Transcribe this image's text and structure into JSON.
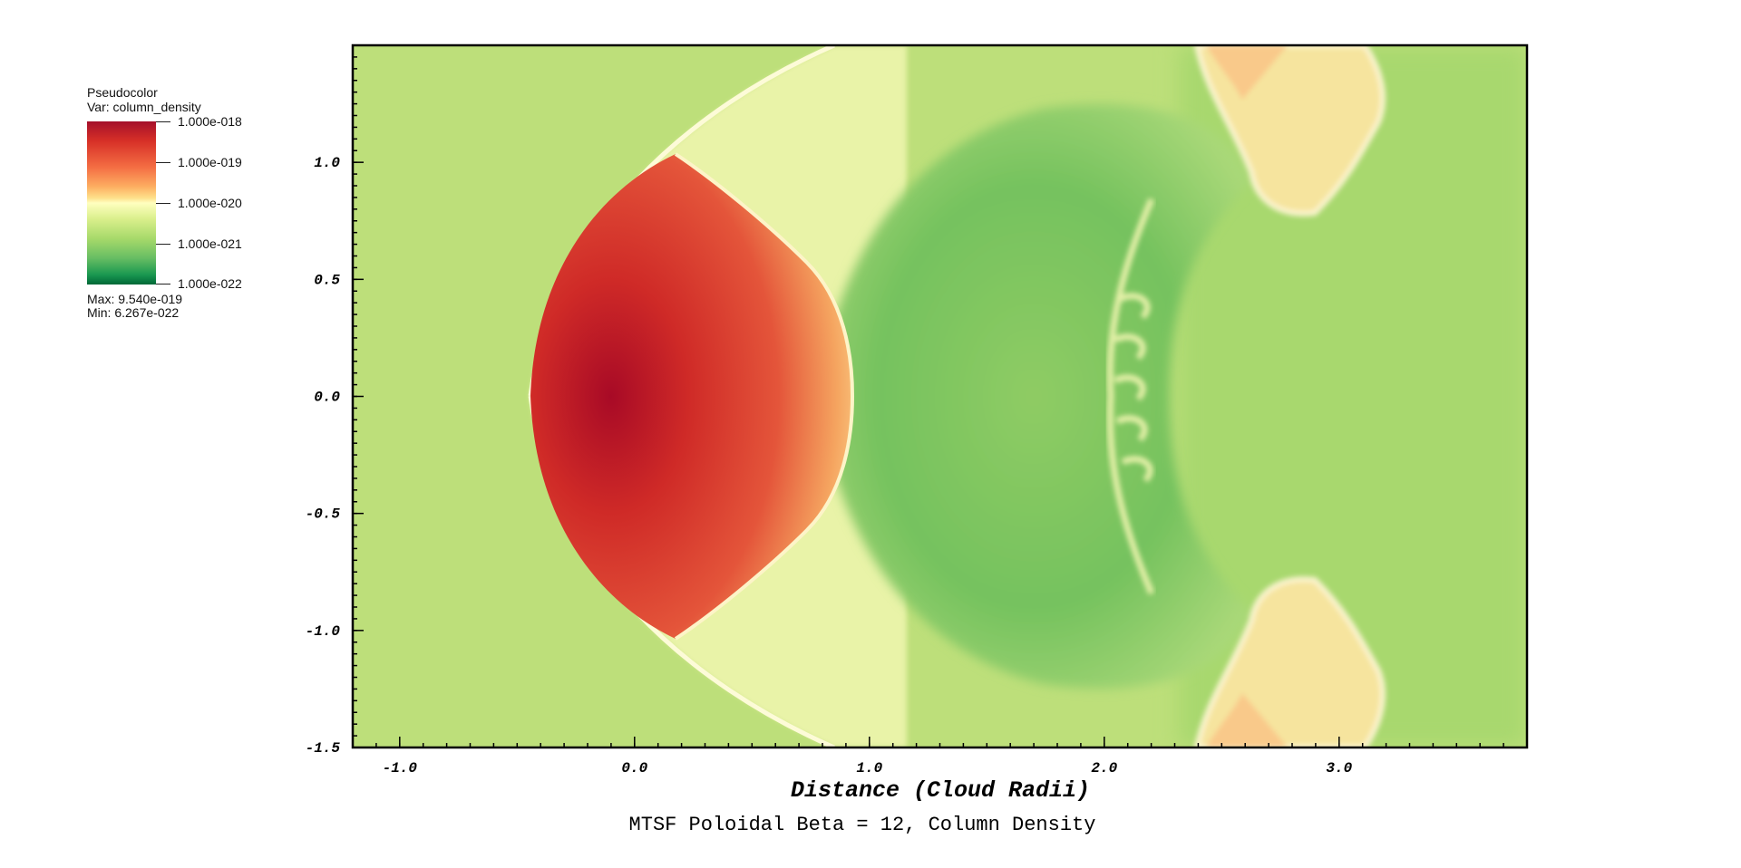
{
  "legend": {
    "type_label": "Pseudocolor",
    "var_label": "Var: column_density",
    "tick_labels": [
      "1.000e-018",
      "1.000e-019",
      "1.000e-020",
      "1.000e-021",
      "1.000e-022"
    ],
    "max_label": "Max:  9.540e-019",
    "min_label": "Min:  6.267e-022",
    "colors": [
      "#a50f2b",
      "#d73027",
      "#f46d43",
      "#fdae61",
      "#fee08b",
      "#ffffbf",
      "#d9ef8b",
      "#a6d96a",
      "#66bd63",
      "#1a9850",
      "#006837"
    ]
  },
  "chart_data": {
    "type": "heatmap",
    "title": "MTSF Poloidal Beta = 12, Column Density",
    "xlabel": "Distance (Cloud Radii)",
    "ylabel": "",
    "xlim": [
      -1.2,
      3.8
    ],
    "ylim": [
      -1.5,
      1.5
    ],
    "x_ticks": [
      -1.0,
      0.0,
      1.0,
      2.0,
      3.0
    ],
    "x_tick_labels": [
      "-1.0",
      "0.0",
      "1.0",
      "2.0",
      "3.0"
    ],
    "y_ticks": [
      1.0,
      0.5,
      0.0,
      -0.5,
      -1.0,
      -1.5
    ],
    "y_tick_labels": [
      "1.0",
      "0.5",
      "0.0",
      "-0.5",
      "-1.0",
      "-1.5"
    ],
    "colorbar_range": [
      1e-22,
      1e-18
    ],
    "colorbar_scale": "log",
    "data_max": 9.54e-19,
    "data_min": 6.267e-22,
    "background_color": "#b8df78"
  }
}
